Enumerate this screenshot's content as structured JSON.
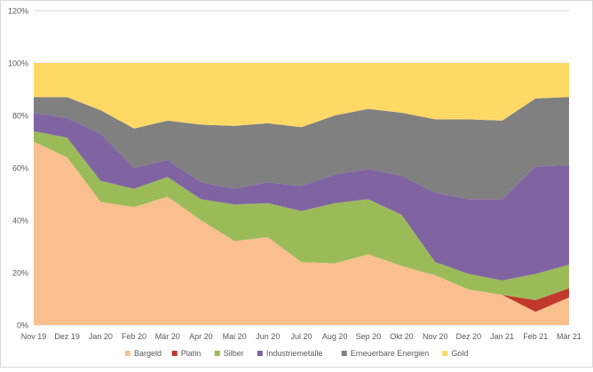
{
  "chart_data": {
    "type": "area",
    "stacked": true,
    "title": "",
    "xlabel": "",
    "ylabel": "",
    "ylim": [
      0,
      120
    ],
    "yticks": [
      0,
      20,
      40,
      60,
      80,
      100,
      120
    ],
    "ytick_labels": [
      "0%",
      "20%",
      "40%",
      "60%",
      "80%",
      "100%",
      "120%"
    ],
    "grid": true,
    "legend": "bottom",
    "categories": [
      "Nov 19",
      "Dez 19",
      "Jan 20",
      "Feb 20",
      "Mär 20",
      "Apr 20",
      "Mai 20",
      "Jun 20",
      "Jul 20",
      "Aug 20",
      "Sep 20",
      "Okt 20",
      "Nov 20",
      "Dez 20",
      "Jan 21",
      "Feb 21",
      "Mär 21"
    ],
    "series": [
      {
        "name": "Bargeld",
        "color": "#F9BF8F",
        "values": [
          70,
          64,
          47,
          45,
          49,
          40,
          32,
          33.5,
          24,
          23.5,
          27,
          22.5,
          19,
          13.5,
          11.5,
          5,
          10.5
        ]
      },
      {
        "name": "Platin",
        "color": "#C0392B",
        "values": [
          0,
          0,
          0,
          0,
          0,
          0,
          0,
          0,
          0,
          0,
          0,
          0,
          0,
          0,
          0,
          4.5,
          3.5
        ]
      },
      {
        "name": "Silber",
        "color": "#9BBB59",
        "values": [
          4,
          7.5,
          8,
          7,
          7.5,
          8,
          14,
          13,
          19.5,
          23,
          21,
          19.5,
          5,
          6,
          5.5,
          10,
          9
        ]
      },
      {
        "name": "Industriemetalle",
        "color": "#8064A2",
        "values": [
          7,
          7.5,
          18,
          8,
          6.5,
          6.5,
          6,
          8,
          9.5,
          11,
          11.5,
          15,
          26.5,
          28.5,
          31,
          41,
          38
        ]
      },
      {
        "name": "Erneuerbare Energien",
        "color": "#808080",
        "values": [
          6,
          8,
          9,
          15,
          15,
          22,
          24,
          22.5,
          22.5,
          22.5,
          23,
          24,
          28,
          30.5,
          30,
          26,
          26
        ]
      },
      {
        "name": "Gold",
        "color": "#FFD966",
        "values": [
          13,
          13,
          18,
          25,
          22,
          23.5,
          24,
          23,
          24.5,
          20,
          17.5,
          19,
          21.5,
          21.5,
          22,
          13.5,
          13
        ]
      }
    ]
  }
}
